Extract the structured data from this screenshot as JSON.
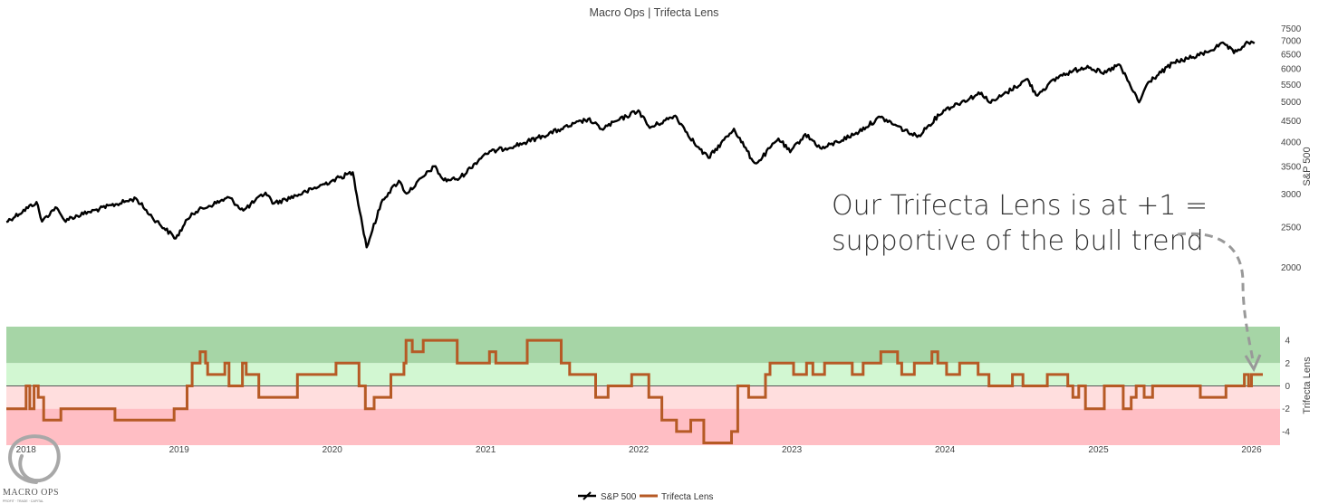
{
  "chart_data": [
    {
      "type": "line",
      "title": "Macro Ops | Trifecta Lens",
      "ylabel": "S&P 500",
      "y_scale": "log",
      "ylim": [
        1900,
        7700
      ],
      "y_ticks": [
        "7500",
        "7000",
        "6500",
        "6000",
        "5500",
        "5000",
        "4500",
        "4000",
        "3500",
        "3000",
        "2500",
        "2000"
      ],
      "x_range": [
        "2017-11-15",
        "2026-03-10"
      ],
      "series": [
        {
          "name": "S&P 500",
          "color": "#000000",
          "x": [
            "2017-11-15",
            "2018-01-26",
            "2018-02-08",
            "2018-03-12",
            "2018-04-02",
            "2018-06-01",
            "2018-09-20",
            "2018-10-29",
            "2018-12-24",
            "2019-01-31",
            "2019-04-30",
            "2019-06-03",
            "2019-07-26",
            "2019-08-15",
            "2019-10-31",
            "2019-12-31",
            "2020-02-19",
            "2020-03-23",
            "2020-04-30",
            "2020-06-08",
            "2020-06-26",
            "2020-08-31",
            "2020-09-23",
            "2020-10-30",
            "2020-12-31",
            "2021-03-31",
            "2021-06-30",
            "2021-09-02",
            "2021-10-04",
            "2021-12-31",
            "2022-01-27",
            "2022-03-29",
            "2022-05-20",
            "2022-06-16",
            "2022-08-16",
            "2022-09-30",
            "2022-10-12",
            "2022-11-30",
            "2022-12-28",
            "2023-02-02",
            "2023-03-13",
            "2023-05-31",
            "2023-07-31",
            "2023-10-27",
            "2023-12-29",
            "2024-03-28",
            "2024-04-19",
            "2024-07-16",
            "2024-08-05",
            "2024-09-30",
            "2024-12-06",
            "2025-01-13",
            "2025-02-19",
            "2025-04-08",
            "2025-04-30",
            "2025-06-30",
            "2025-08-29",
            "2025-10-28",
            "2025-11-20",
            "2025-12-24",
            "2026-01-08"
          ],
          "values": [
            2575,
            2872,
            2580,
            2790,
            2600,
            2720,
            2930,
            2640,
            2350,
            2700,
            2945,
            2740,
            3025,
            2850,
            3040,
            3230,
            3386,
            2237,
            2910,
            3230,
            3010,
            3500,
            3240,
            3270,
            3756,
            3973,
            4300,
            4540,
            4300,
            4766,
            4326,
            4630,
            3900,
            3666,
            4305,
            3600,
            3577,
            4080,
            3783,
            4180,
            3855,
            4180,
            4590,
            4117,
            4770,
            5254,
            4967,
            5667,
            5186,
            5762,
            6090,
            5830,
            6144,
            4982,
            5570,
            6205,
            6460,
            6890,
            6540,
            6930,
            6900
          ]
        },
        {
          "name": "Trifecta Lens",
          "color": "#b65a25",
          "ylabel": "Trifecta Lens",
          "ylim": [
            -5.2,
            5.2
          ],
          "y_ticks": [
            "4",
            "2",
            "0",
            "-2",
            "-4"
          ],
          "bands": [
            {
              "from": 2,
              "to": 5.2,
              "color": "#a6d5a6"
            },
            {
              "from": 0,
              "to": 2,
              "color": "#d2f7d2"
            },
            {
              "from": -2,
              "to": 0,
              "color": "#ffdede"
            },
            {
              "from": -5.2,
              "to": -2,
              "color": "#ffbec4"
            }
          ],
          "x": [
            "2017-11-15",
            "2018-01-01",
            "2018-01-10",
            "2018-01-20",
            "2018-01-30",
            "2018-02-12",
            "2018-03-25",
            "2018-04-10",
            "2018-04-20",
            "2018-05-25",
            "2018-08-01",
            "2018-11-10",
            "2018-12-20",
            "2019-01-20",
            "2019-02-01",
            "2019-02-20",
            "2019-03-05",
            "2019-03-10",
            "2019-04-05",
            "2019-04-20",
            "2019-04-30",
            "2019-05-10",
            "2019-06-01",
            "2019-06-10",
            "2019-07-10",
            "2019-10-01",
            "2019-10-10",
            "2019-11-01",
            "2020-01-10",
            "2020-02-15",
            "2020-03-05",
            "2020-03-20",
            "2020-04-10",
            "2020-05-20",
            "2020-06-20",
            "2020-06-25",
            "2020-07-10",
            "2020-08-05",
            "2020-08-20",
            "2020-10-25",
            "2020-11-15",
            "2020-12-01",
            "2021-01-10",
            "2021-01-25",
            "2021-03-15",
            "2021-04-10",
            "2021-05-15",
            "2021-06-30",
            "2021-07-20",
            "2021-08-25",
            "2021-09-20",
            "2021-10-20",
            "2021-12-01",
            "2021-12-15",
            "2022-01-25",
            "2022-02-25",
            "2022-04-01",
            "2022-05-05",
            "2022-06-05",
            "2022-07-20",
            "2022-08-10",
            "2022-08-25",
            "2022-09-20",
            "2022-10-30",
            "2022-11-10",
            "2023-01-05",
            "2023-02-05",
            "2023-02-20",
            "2023-03-20",
            "2023-04-30",
            "2023-05-25",
            "2023-06-20",
            "2023-07-05",
            "2023-07-20",
            "2023-08-01",
            "2023-09-10",
            "2023-09-20",
            "2023-10-20",
            "2023-11-05",
            "2023-11-20",
            "2023-12-01",
            "2023-12-15",
            "2024-01-05",
            "2024-01-20",
            "2024-02-05",
            "2024-03-05",
            "2024-03-20",
            "2024-04-15",
            "2024-05-10",
            "2024-06-10",
            "2024-07-05",
            "2024-08-05",
            "2024-09-01",
            "2024-10-20",
            "2024-11-01",
            "2024-11-15",
            "2024-12-01",
            "2025-01-15",
            "2025-03-01",
            "2025-03-20",
            "2025-04-01",
            "2025-04-20",
            "2025-05-10",
            "2025-07-01",
            "2025-09-01",
            "2025-11-01",
            "2025-12-15",
            "2025-12-25",
            "2026-01-01",
            "2026-01-15"
          ],
          "values": [
            -2,
            0,
            -2,
            0,
            -1,
            -3,
            -2,
            -2,
            -2,
            -2,
            -3,
            -3,
            -2,
            0,
            2,
            3,
            2,
            1,
            1,
            2,
            0,
            0,
            2,
            1,
            -1,
            -1,
            1,
            1,
            2,
            2,
            0,
            -2,
            -1,
            1,
            2,
            4,
            3,
            4,
            4,
            2,
            2,
            2,
            3,
            2,
            2,
            4,
            4,
            2,
            1,
            1,
            -1,
            0,
            0,
            1,
            -1,
            -3,
            -4,
            -3,
            -5,
            -5,
            -4,
            0,
            -1,
            1,
            2,
            1,
            2,
            1,
            2,
            2,
            1,
            2,
            2,
            2,
            3,
            2,
            1,
            2,
            2,
            2,
            3,
            2,
            1,
            1,
            2,
            2,
            1,
            0,
            0,
            1,
            0,
            0,
            1,
            0,
            -1,
            0,
            -2,
            0,
            -2,
            -1,
            0,
            -1,
            0,
            0,
            -1,
            0,
            1,
            0,
            1,
            1
          ]
        }
      ],
      "x_ticks": [
        "2018",
        "2019",
        "2020",
        "2021",
        "2022",
        "2023",
        "2024",
        "2025",
        "2026"
      ],
      "annotation": {
        "lines": [
          "Our Trifecta Lens is at +1 =",
          "supportive of the bull trend"
        ]
      },
      "legend": {
        "placement": "bottom-center",
        "items": [
          "S&P 500",
          "Trifecta Lens"
        ]
      },
      "logo": {
        "text": "MACRO OPS",
        "tagline": "PROFIT · TRADE · CAPITAL"
      }
    }
  ]
}
